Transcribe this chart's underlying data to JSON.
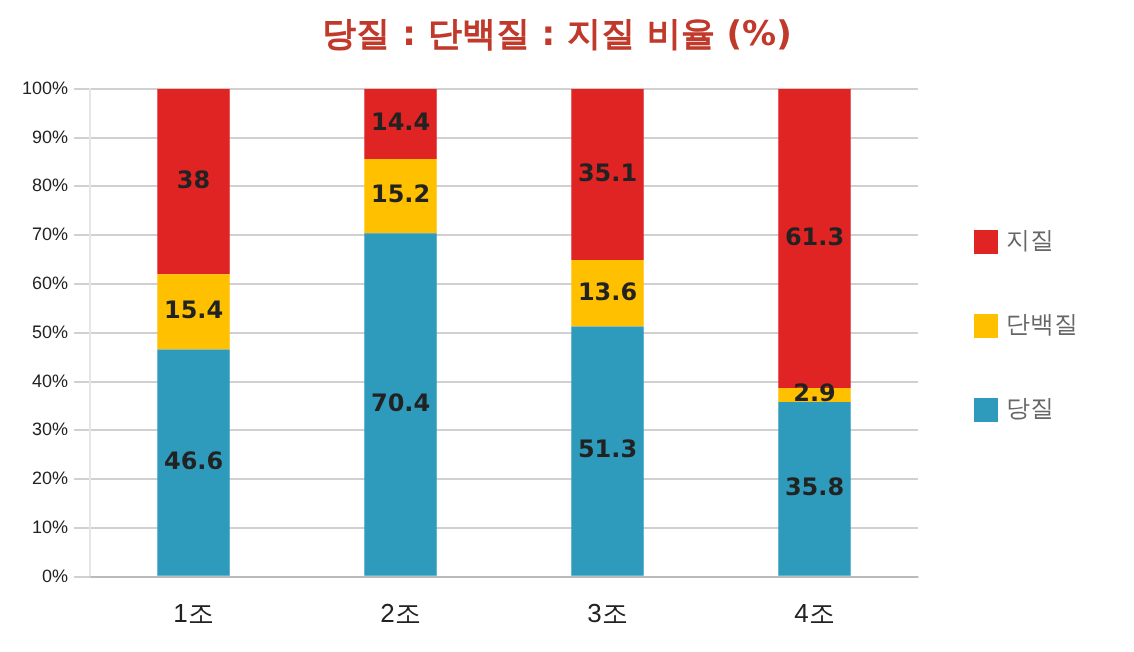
{
  "chart_data": {
    "type": "bar",
    "title": "당질 : 단백질 : 지질 비율 (%)",
    "categories": [
      "1조",
      "2조",
      "3조",
      "4조"
    ],
    "series": [
      {
        "name": "당질",
        "color": "#2e9bbd",
        "values": [
          46.6,
          70.4,
          51.3,
          35.8
        ]
      },
      {
        "name": "단백질",
        "color": "#ffc000",
        "values": [
          15.4,
          15.2,
          13.6,
          2.9
        ]
      },
      {
        "name": "지질",
        "color": "#e02424",
        "values": [
          38,
          14.4,
          35.1,
          61.3
        ]
      }
    ],
    "stacked": true,
    "data_labels": true,
    "ylim": [
      0,
      100
    ],
    "yticks": [
      {
        "value": 0,
        "label": "0%"
      },
      {
        "value": 10,
        "label": "10%"
      },
      {
        "value": 20,
        "label": "20%"
      },
      {
        "value": 30,
        "label": "30%"
      },
      {
        "value": 40,
        "label": "40%"
      },
      {
        "value": 50,
        "label": "50%"
      },
      {
        "value": 60,
        "label": "60%"
      },
      {
        "value": 70,
        "label": "70%"
      },
      {
        "value": 80,
        "label": "80%"
      },
      {
        "value": 90,
        "label": "90%"
      },
      {
        "value": 100,
        "label": "100%"
      }
    ],
    "grid": "y",
    "legend": "right"
  }
}
